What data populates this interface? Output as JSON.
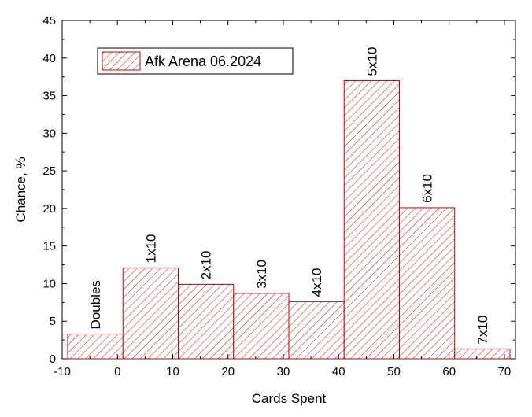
{
  "chart_data": {
    "type": "bar",
    "xlabel": "Cards Spent",
    "ylabel": "Chance, %",
    "xlim": [
      -10,
      72
    ],
    "ylim": [
      0,
      45
    ],
    "x_ticks": [
      -10,
      0,
      10,
      20,
      30,
      40,
      50,
      60,
      70
    ],
    "y_ticks": [
      0,
      5,
      10,
      15,
      20,
      25,
      30,
      35,
      40,
      45
    ],
    "legend": {
      "label": "Afk Arena 06.2024",
      "position": "top-left"
    },
    "colors": {
      "bar_stroke": "#cc0000",
      "hatch": "#e02020"
    },
    "bars": [
      {
        "x0": -9,
        "x1": 1,
        "value": 3.3,
        "label": "Doubles"
      },
      {
        "x0": 1,
        "x1": 11,
        "value": 12.1,
        "label": "1x10"
      },
      {
        "x0": 11,
        "x1": 21,
        "value": 9.9,
        "label": "2x10"
      },
      {
        "x0": 21,
        "x1": 31,
        "value": 8.7,
        "label": "3x10"
      },
      {
        "x0": 31,
        "x1": 41,
        "value": 7.6,
        "label": "4x10"
      },
      {
        "x0": 41,
        "x1": 51,
        "value": 37.0,
        "label": "5x10"
      },
      {
        "x0": 51,
        "x1": 61,
        "value": 20.1,
        "label": "6x10"
      },
      {
        "x0": 61,
        "x1": 71,
        "value": 1.3,
        "label": "7x10"
      }
    ]
  }
}
